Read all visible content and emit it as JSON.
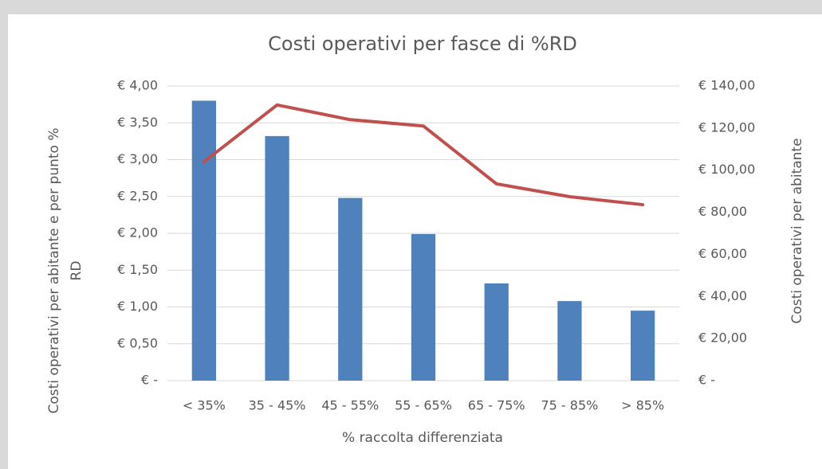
{
  "chart_data": {
    "type": "bar_line",
    "title": "Costi operativi per fasce di %RD",
    "x_label": "% raccolta differenziata",
    "y_label": [
      "Costi operativi per abitante e per punto %",
      "RD"
    ],
    "y2_label": "Costi operativi per abitante",
    "categories": [
      "< 35%",
      "35 - 45%",
      "45 - 55%",
      "55 - 65%",
      "65 - 75%",
      "75 - 85%",
      "> 85%"
    ],
    "series": [
      {
        "type": "bar",
        "color": "#4f81bd",
        "values": [
          3.8,
          3.32,
          2.48,
          1.99,
          1.32,
          1.08,
          0.95
        ]
      },
      {
        "type": "line",
        "axis": "y2",
        "color": "#c0504d",
        "values": [
          104,
          131,
          124,
          121,
          93.5,
          87.4,
          83.6
        ]
      }
    ],
    "ylim": [
      0,
      4
    ],
    "yticks": [
      {
        "value": 0,
        "label": "€ -"
      },
      {
        "value": 0.5,
        "label": "€ 0,50"
      },
      {
        "value": 1,
        "label": "€ 1,00"
      },
      {
        "value": 1.5,
        "label": "€ 1,50"
      },
      {
        "value": 2,
        "label": "€ 2,00"
      },
      {
        "value": 2.5,
        "label": "€ 2,50"
      },
      {
        "value": 3,
        "label": "€ 3,00"
      },
      {
        "value": 3.5,
        "label": "€ 3,50"
      },
      {
        "value": 4,
        "label": "€ 4,00"
      }
    ],
    "y2lim": [
      0,
      140
    ],
    "y2ticks": [
      {
        "value": 0,
        "label": "€ -"
      },
      {
        "value": 20,
        "label": "€ 20,00"
      },
      {
        "value": 40,
        "label": "€ 40,00"
      },
      {
        "value": 60,
        "label": "€ 60,00"
      },
      {
        "value": 80,
        "label": "€ 80,00"
      },
      {
        "value": 100,
        "label": "€ 100,00"
      },
      {
        "value": 120,
        "label": "€ 120,00"
      },
      {
        "value": 140,
        "label": "€ 140,00"
      }
    ],
    "grid": true
  }
}
